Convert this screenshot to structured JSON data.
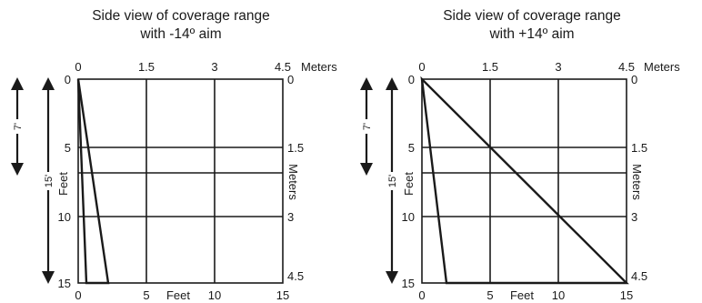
{
  "panels": [
    {
      "title_line1": "Side view of coverage range",
      "title_line2": "with -14º aim",
      "top_ticks": [
        "0",
        "1.5",
        "3",
        "4.5"
      ],
      "top_unit": "Meters",
      "left_ticks": [
        "0",
        "5",
        "10",
        "15"
      ],
      "left_unit": "Feet",
      "right_ticks": [
        "0",
        "1.5",
        "3",
        "4.5"
      ],
      "right_unit": "Meters",
      "bottom_ticks": [
        "0",
        "5",
        "10",
        "15"
      ],
      "bottom_unit": "Feet",
      "arrow_short_label": "7'",
      "arrow_long_label": "15'",
      "coverage_feet": {
        "inner_end": 0.6,
        "outer_end": 2.2
      }
    },
    {
      "title_line1": "Side view of coverage range",
      "title_line2": "with +14º aim",
      "top_ticks": [
        "0",
        "1.5",
        "3",
        "4.5"
      ],
      "top_unit": "Meters",
      "left_ticks": [
        "0",
        "5",
        "10",
        "15"
      ],
      "left_unit": "Feet",
      "right_ticks": [
        "0",
        "1.5",
        "3",
        "4.5"
      ],
      "right_unit": "Meters",
      "bottom_ticks": [
        "0",
        "5",
        "10",
        "15"
      ],
      "bottom_unit": "Feet",
      "arrow_short_label": "7'",
      "arrow_long_label": "15'",
      "coverage_feet": {
        "inner_end": 1.8,
        "outer_end": 15
      }
    }
  ]
}
